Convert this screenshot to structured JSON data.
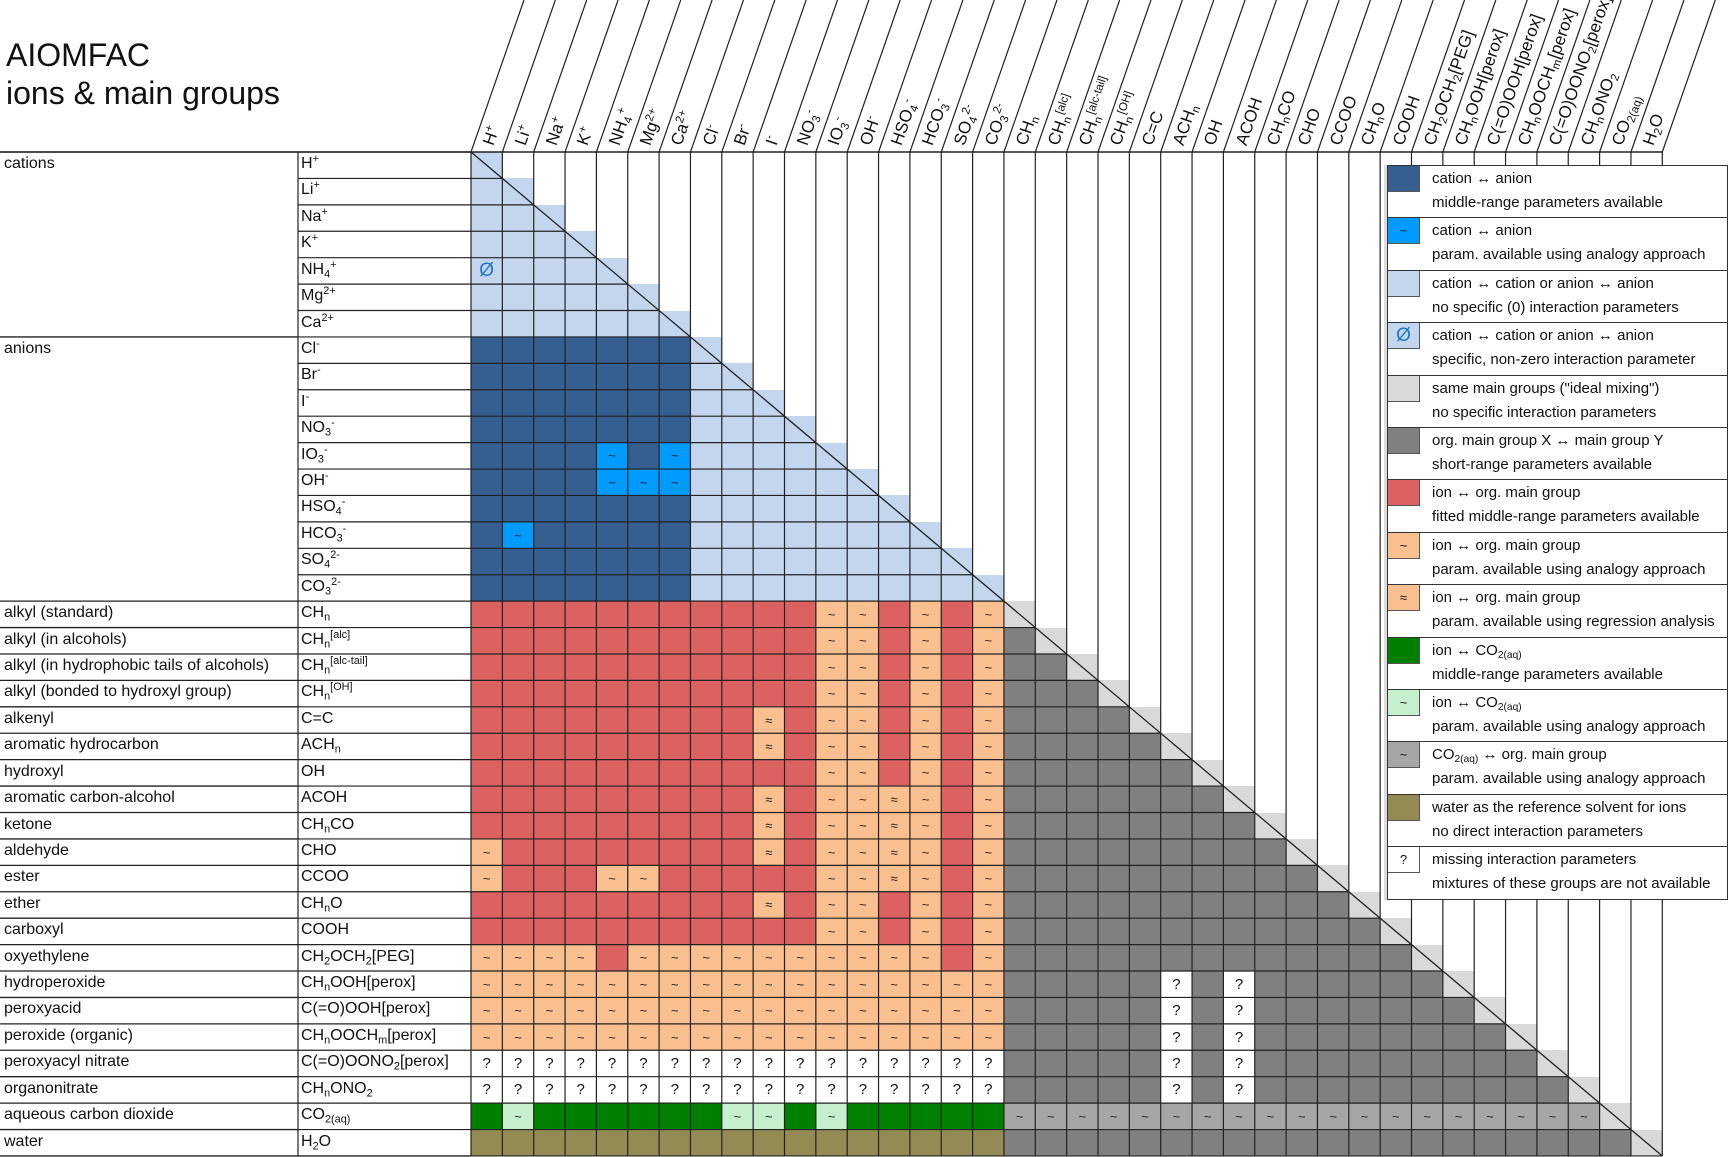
{
  "title": {
    "line1": "AIOMFAC",
    "line2": "ions & main groups"
  },
  "cell_types": {
    "B": {
      "color": "#355f91",
      "symbol": ""
    },
    "b": {
      "color": "#009bff",
      "symbol": "~"
    },
    "L": {
      "color": "#c3d6ee",
      "symbol": ""
    },
    "Z": {
      "color": "#c3d6ee",
      "symbol": "Ø"
    },
    "G": {
      "color": "#d9d9d9",
      "symbol": ""
    },
    "D": {
      "color": "#808080",
      "symbol": ""
    },
    "R": {
      "color": "#dc6262",
      "symbol": ""
    },
    "T": {
      "color": "#f9bf8f",
      "symbol": "~"
    },
    "A": {
      "color": "#f9bf8f",
      "symbol": "≈"
    },
    "E": {
      "color": "#008000",
      "symbol": ""
    },
    "e": {
      "color": "#c6efce",
      "symbol": "~"
    },
    "C": {
      "color": "#a6a6a6",
      "symbol": "~"
    },
    "W": {
      "color": "#948a54",
      "symbol": ""
    },
    "Q": {
      "color": "#ffffff",
      "symbol": "?"
    }
  },
  "rows": [
    {
      "group": "cations",
      "label": "H^{+}",
      "ion": "L",
      "org": ""
    },
    {
      "group": "cations",
      "label": "Li^{+}",
      "ion": "LL",
      "org": ""
    },
    {
      "group": "cations",
      "label": "Na^{+}",
      "ion": "LLL",
      "org": ""
    },
    {
      "group": "cations",
      "label": "K^{+}",
      "ion": "LLLL",
      "org": ""
    },
    {
      "group": "cations",
      "label": "NH_{4}^{+}",
      "ion": "ZLLLL",
      "org": ""
    },
    {
      "group": "cations",
      "label": "Mg^{2+}",
      "ion": "LLLLLL",
      "org": ""
    },
    {
      "group": "cations",
      "label": "Ca^{2+}",
      "ion": "LLLLLLL",
      "org": ""
    },
    {
      "group": "anions",
      "label": "Cl^{-}",
      "ion": "BBBBBBBL",
      "org": ""
    },
    {
      "group": "anions",
      "label": "Br^{-}",
      "ion": "BBBBBBBLL",
      "org": ""
    },
    {
      "group": "anions",
      "label": "I^{-}",
      "ion": "BBBBBBBLLL",
      "org": ""
    },
    {
      "group": "anions",
      "label": "NO_{3}^{-}",
      "ion": "BBBBBBBLLLL",
      "org": ""
    },
    {
      "group": "anions",
      "label": "IO_{3}^{-}",
      "ion": "BBBBbBbLLLLL",
      "org": ""
    },
    {
      "group": "anions",
      "label": "OH^{-}",
      "ion": "BBBBbbbLLLLLL",
      "org": ""
    },
    {
      "group": "anions",
      "label": "HSO_{4}^{-}",
      "ion": "BBBBBBBLLLLLLL",
      "org": ""
    },
    {
      "group": "anions",
      "label": "HCO_{3}^{-}",
      "ion": "BbBBBBBLLLLLLLL",
      "org": ""
    },
    {
      "group": "anions",
      "label": "SO_{4}^{2-}",
      "ion": "BBBBBBBLLLLLLLLL",
      "org": ""
    },
    {
      "group": "anions",
      "label": "CO_{3}^{2-}",
      "ion": "BBBBBBBLLLLLLLLLL",
      "org": ""
    },
    {
      "group": "alkyl (standard)",
      "label": "CH_{n}",
      "ion": "RRRRRRRRRRRTTRTRT",
      "org": "G"
    },
    {
      "group": "alkyl (in alcohols)",
      "label": "CH_{n}^{[alc]}",
      "ion": "RRRRRRRRRRRTTRTRT",
      "org": "DG"
    },
    {
      "group": "alkyl (in hydrophobic tails of alcohols)",
      "label": "CH_{n}^{[alc-tail]}",
      "ion": "RRRRRRRRRRRTTRTRT",
      "org": "DDG"
    },
    {
      "group": "alkyl (bonded to hydroxyl group)",
      "label": "CH_{n}^{[OH]}",
      "ion": "RRRRRRRRRRRTTRTRT",
      "org": "DDDG"
    },
    {
      "group": "alkenyl",
      "label": "C=C",
      "ion": "RRRRRRRRRARTTRTRT",
      "org": "DDDDG"
    },
    {
      "group": "aromatic hydrocarbon",
      "label": "ACH_{n}",
      "ion": "RRRRRRRRRARTTRTRT",
      "org": "DDDDDG"
    },
    {
      "group": "hydroxyl",
      "label": "OH",
      "ion": "RRRRRRRRRRRTTRTRT",
      "org": "DDDDDDG"
    },
    {
      "group": "aromatic carbon-alcohol",
      "label": "ACOH",
      "ion": "RRRRRRRRRARTTATRT",
      "org": "DDDDDDDG"
    },
    {
      "group": "ketone",
      "label": "CH_{n}CO",
      "ion": "RRRRRRRRRARTTATRT",
      "org": "DDDDDDDDG"
    },
    {
      "group": "aldehyde",
      "label": "CHO",
      "ion": "TRRRRRRRRARTTATRT",
      "org": "DDDDDDDDDG"
    },
    {
      "group": "ester",
      "label": "CCOO",
      "ion": "TRRRTTRRRRRTTATRT",
      "org": "DDDDDDDDDDG"
    },
    {
      "group": "ether",
      "label": "CH_{n}O",
      "ion": "RRRRRRRRRARTTRTRT",
      "org": "DDDDDDDDDDDG"
    },
    {
      "group": "carboxyl",
      "label": "COOH",
      "ion": "RRRRRRRRRRRTTRTRT",
      "org": "DDDDDDDDDDDDG"
    },
    {
      "group": "oxyethylene",
      "label": "CH_{2}OCH_{2}[PEG]",
      "ion": "TTTTRTTTTTTTTTTRT",
      "org": "DDDDDDDDDDDDDG"
    },
    {
      "group": "hydroperoxide",
      "label": "CH_{n}OOH[perox]",
      "ion": "TTTTTTTTTTTTTTTTT",
      "org": "DDDDDQDQDDDDDDG"
    },
    {
      "group": "peroxyacid",
      "label": "C(=O)OOH[perox]",
      "ion": "TTTTTTTTTTTTTTTTT",
      "org": "DDDDDQDQDDDDDDDG"
    },
    {
      "group": "peroxide (organic)",
      "label": "CH_{n}OOCH_{m}[perox]",
      "ion": "TTTTTTTTTTTTTTTTT",
      "org": "DDDDDQDQDDDDDDDDG"
    },
    {
      "group": "peroxyacyl nitrate",
      "label": "C(=O)OONO_{2}[perox]",
      "ion": "QQQQQQQQQQQQQQQQQ",
      "org": "DDDDDQDQDDDDDDDDDG"
    },
    {
      "group": "organonitrate",
      "label": "CH_{n}ONO_{2}",
      "ion": "QQQQQQQQQQQQQQQQQ",
      "org": "DDDDDQDQDDDDDDDDDDG"
    },
    {
      "group": "aqueous carbon dioxide",
      "label": "CO_{2(aq)}",
      "ion": "EeEEEEEEeeEeEEEEE",
      "org": "CCCCCCCCCCCCCCCCCCCG"
    },
    {
      "group": "water",
      "label": "H_{2}O",
      "ion": "WWWWWWWWWWWWWWWWW",
      "org": "DDDDDDDDDDDDDDDDDDDDG"
    }
  ],
  "legend": [
    {
      "code": "B",
      "line1": "cation ↔ anion",
      "line2": "middle-range parameters available"
    },
    {
      "code": "b",
      "line1": "cation ↔ anion",
      "line2": "param. available using analogy approach"
    },
    {
      "code": "L",
      "line1": "cation ↔ cation or anion ↔ anion",
      "line2": "no specific (0) interaction parameters"
    },
    {
      "code": "Z",
      "line1": "cation ↔ cation or anion ↔ anion",
      "line2": "specific, non-zero interaction parameter"
    },
    {
      "code": "G",
      "line1": "same main groups (\"ideal mixing\")",
      "line2": "no specific interaction parameters"
    },
    {
      "code": "D",
      "line1": "org. main group X ↔ main group Y",
      "line2": "short-range parameters available"
    },
    {
      "code": "R",
      "line1": "ion ↔ org. main group",
      "line2": "fitted middle-range parameters available"
    },
    {
      "code": "T",
      "line1": "ion ↔ org. main group",
      "line2": "param. available using analogy approach"
    },
    {
      "code": "A",
      "line1": "ion ↔ org. main group",
      "line2": "param. available using regression analysis"
    },
    {
      "code": "E",
      "line1": "ion ↔ CO_{2(aq)}",
      "line2": "middle-range parameters available"
    },
    {
      "code": "e",
      "line1": "ion ↔ CO_{2(aq)}",
      "line2": "param. available using analogy approach"
    },
    {
      "code": "C",
      "line1": "CO_{2(aq)} ↔ org. main group",
      "line2": "param. available using analogy approach"
    },
    {
      "code": "W",
      "line1": "water as the reference solvent for ions",
      "line2": "no direct interaction parameters"
    },
    {
      "code": "Q",
      "line1": "missing interaction parameters",
      "line2": "mixtures of these groups are not available"
    }
  ]
}
